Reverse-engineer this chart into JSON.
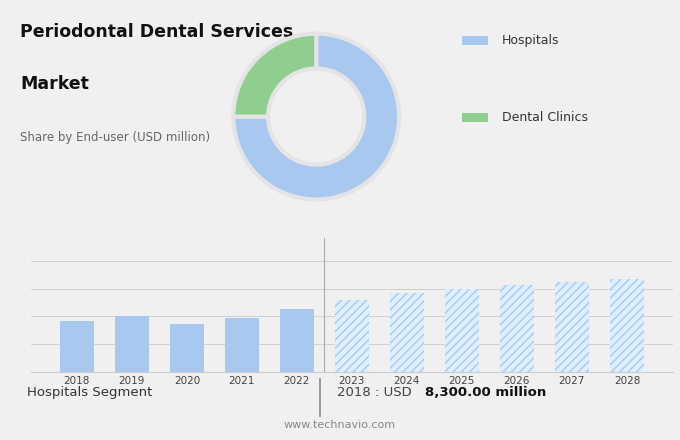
{
  "title_line1": "Periodontal Dental Services",
  "title_line2": "Market",
  "subtitle": "Share by End-user (USD million)",
  "donut_values": [
    75,
    25
  ],
  "donut_colors": [
    "#a8c8f0",
    "#8fce8f"
  ],
  "donut_labels": [
    "Hospitals",
    "Dental Clinics"
  ],
  "bar_years_historical": [
    2018,
    2019,
    2020,
    2021,
    2022
  ],
  "bar_values_historical": [
    0.55,
    0.6,
    0.52,
    0.58,
    0.68
  ],
  "bar_years_forecast": [
    2023,
    2024,
    2025,
    2026,
    2027,
    2028
  ],
  "bar_values_forecast": [
    0.78,
    0.85,
    0.9,
    0.94,
    0.97,
    1.0
  ],
  "bar_color_historical": "#a8c8f0",
  "bar_color_forecast_fill": "#ddeeff",
  "bar_color_forecast_hatch": "#a8c8f0",
  "top_bg_color": "#e4e4e4",
  "bottom_bg_color": "#f0f0f0",
  "grid_color": "#cccccc",
  "sep_color": "#aaaaaa",
  "footer_left": "Hospitals Segment",
  "footer_mid": "2018 : USD ",
  "footer_bold": "8,300.00 million",
  "footer_url": "www.technavio.com",
  "legend_labels": [
    "Hospitals",
    "Dental Clinics"
  ],
  "legend_colors": [
    "#a8c8f0",
    "#8fce8f"
  ],
  "legend_square_size": 0.025
}
